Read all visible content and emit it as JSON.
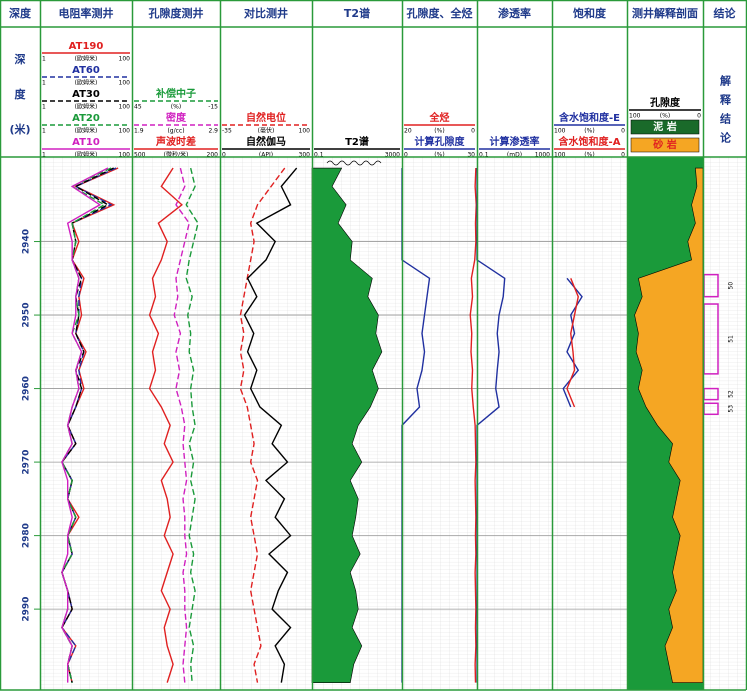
{
  "chart_data": {
    "type": "well-log",
    "depth_title": "深度",
    "depth_label": [
      "深",
      "度",
      "(米)"
    ],
    "ylim": [
      2928.5,
      3001
    ],
    "yticks": [
      2940,
      2950,
      2960,
      2970,
      2980,
      2990
    ],
    "depths": [
      2930,
      2932.5,
      2935,
      2937.5,
      2940,
      2942.5,
      2945,
      2947.5,
      2950,
      2952.5,
      2955,
      2957.5,
      2960,
      2962.5,
      2965,
      2967.5,
      2970,
      2972.5,
      2975,
      2977.5,
      2980,
      2982.5,
      2985,
      2987.5,
      2990,
      2992.5,
      2995,
      2997.5,
      3000
    ],
    "tracks": [
      {
        "type": "line",
        "title": "电阻率测井",
        "series": [
          {
            "name": "AT190",
            "color": "#e02020",
            "dash": false,
            "log": true,
            "xlim": [
              1,
              100
            ],
            "unit": "(欧姆米)",
            "values": [
              50,
              6,
              40,
              5,
              7,
              5,
              9,
              7,
              8,
              6,
              10,
              7,
              9,
              6,
              4,
              6,
              3,
              5,
              4,
              7,
              4,
              5,
              3,
              4,
              5,
              3,
              6,
              4,
              5
            ]
          },
          {
            "name": "AT60",
            "color": "#2030a0",
            "dash": true,
            "log": true,
            "xlim": [
              1,
              100
            ],
            "unit": "(欧姆米)",
            "values": [
              45,
              6,
              35,
              5,
              6,
              5,
              8,
              7,
              7,
              6,
              9,
              7,
              8,
              6,
              4,
              6,
              3,
              5,
              4,
              6,
              4,
              5,
              3,
              4,
              5,
              3,
              6,
              4,
              5
            ]
          },
          {
            "name": "AT30",
            "color": "#000000",
            "dash": true,
            "log": true,
            "xlim": [
              1,
              100
            ],
            "unit": "(欧姆米)",
            "values": [
              40,
              6,
              30,
              5,
              6,
              5,
              8,
              6,
              7,
              6,
              9,
              6,
              8,
              6,
              4,
              6,
              3,
              5,
              4,
              6,
              4,
              5,
              3,
              4,
              5,
              3,
              5,
              4,
              5
            ]
          },
          {
            "name": "AT20",
            "color": "#1a9a3a",
            "dash": true,
            "log": true,
            "xlim": [
              1,
              100
            ],
            "unit": "(欧姆米)",
            "values": [
              35,
              5,
              25,
              5,
              6,
              5,
              7,
              6,
              7,
              5,
              8,
              6,
              7,
              5,
              4,
              5,
              3,
              5,
              4,
              6,
              4,
              5,
              3,
              4,
              4,
              3,
              5,
              4,
              5
            ]
          },
          {
            "name": "AT10",
            "color": "#d020c0",
            "dash": false,
            "log": true,
            "xlim": [
              1,
              100
            ],
            "unit": "(欧姆米)",
            "values": [
              30,
              5,
              20,
              4,
              5,
              5,
              7,
              6,
              6,
              5,
              8,
              6,
              7,
              5,
              4,
              5,
              3,
              4,
              4,
              5,
              4,
              4,
              3,
              4,
              4,
              3,
              5,
              4,
              4
            ]
          }
        ]
      },
      {
        "type": "line",
        "title": "孔隙度测井",
        "series": [
          {
            "name": "补偿中子",
            "color": "#1a9a3a",
            "dash": true,
            "log": false,
            "xlim": [
              45,
              -15
            ],
            "unit": "(%)",
            "values": [
              5,
              2,
              8,
              0,
              3,
              6,
              8,
              4,
              7,
              5,
              6,
              3,
              5,
              4,
              2,
              6,
              3,
              5,
              2,
              4,
              6,
              3,
              5,
              2,
              4,
              6,
              3,
              5,
              4
            ]
          },
          {
            "name": "密度",
            "color": "#d020c0",
            "dash": true,
            "log": false,
            "xlim": [
              1.9,
              2.9
            ],
            "unit": "(g/cc)",
            "values": [
              2.45,
              2.5,
              2.4,
              2.55,
              2.5,
              2.45,
              2.4,
              2.42,
              2.38,
              2.45,
              2.4,
              2.44,
              2.4,
              2.46,
              2.5,
              2.48,
              2.5,
              2.52,
              2.48,
              2.5,
              2.5,
              2.52,
              2.48,
              2.5,
              2.5,
              2.52,
              2.5,
              2.48,
              2.5
            ]
          },
          {
            "name": "声波时差",
            "color": "#e02020",
            "dash": false,
            "log": false,
            "xlim": [
              500,
              200
            ],
            "unit": "(微秒/米)",
            "values": [
              360,
              400,
              330,
              410,
              380,
              400,
              430,
              420,
              440,
              410,
              430,
              420,
              440,
              400,
              370,
              390,
              360,
              400,
              380,
              370,
              390,
              360,
              380,
              400,
              370,
              390,
              380,
              360,
              380
            ]
          }
        ]
      },
      {
        "type": "line",
        "title": "对比测井",
        "series": [
          {
            "name": "自然电位",
            "color": "#e02020",
            "dash": true,
            "log": false,
            "xlim": [
              -35,
              100
            ],
            "unit": "(毫伏)",
            "values": [
              60,
              40,
              20,
              10,
              15,
              10,
              5,
              0,
              -5,
              0,
              -5,
              0,
              -5,
              5,
              10,
              15,
              10,
              20,
              15,
              10,
              15,
              20,
              15,
              10,
              15,
              20,
              25,
              15,
              20
            ]
          },
          {
            "name": "自然伽马",
            "color": "#000000",
            "dash": false,
            "log": false,
            "xlim": [
              0,
              300
            ],
            "unit": "(API)",
            "values": [
              250,
              200,
              230,
              120,
              180,
              150,
              90,
              120,
              80,
              110,
              90,
              120,
              100,
              130,
              200,
              170,
              220,
              150,
              210,
              180,
              230,
              160,
              220,
              190,
              170,
              230,
              180,
              210,
              200
            ]
          }
        ]
      },
      {
        "type": "area",
        "title": "T2谱",
        "series": [
          {
            "name": "T2谱",
            "color": "#1a9a3a",
            "fill": "left",
            "log": true,
            "xlim": [
              0.1,
              3000
            ],
            "unit": "",
            "values": [
              3,
              1,
              5,
              2,
              10,
              8,
              100,
              60,
              200,
              150,
              300,
              100,
              200,
              80,
              20,
              10,
              30,
              8,
              20,
              15,
              10,
              25,
              8,
              15,
              20,
              10,
              30,
              12,
              8
            ]
          }
        ]
      },
      {
        "type": "line",
        "title": "孔隙度、全烃",
        "series": [
          {
            "name": "全烃",
            "color": "#e02020",
            "dash": false,
            "log": false,
            "xlim": [
              20,
              0
            ],
            "unit": "(%)",
            "values": [
              0.3,
              0.5,
              0.2,
              0.4,
              0.3,
              0.6,
              1.5,
              1.2,
              1.8,
              1.4,
              1.6,
              1.2,
              1.4,
              1,
              0.5,
              0.4,
              0.3,
              0.5,
              0.4,
              0.3,
              0.4,
              0.3,
              0.5,
              0.4,
              0.3,
              0.4,
              0.3,
              0.5,
              0.4
            ]
          },
          {
            "name": "计算孔隙度",
            "color": "#2030a0",
            "dash": false,
            "log": false,
            "xlim": [
              0,
              30
            ],
            "unit": "(%)",
            "values": [
              0,
              0,
              0,
              0,
              0,
              0,
              11,
              10,
              9,
              8,
              9,
              8,
              6,
              7,
              0,
              0,
              0,
              0,
              0,
              0,
              0,
              0,
              0,
              0,
              0,
              0,
              0,
              0,
              0
            ]
          }
        ]
      },
      {
        "type": "line",
        "title": "渗透率",
        "series": [
          {
            "name": "计算渗透率",
            "color": "#2030a0",
            "dash": false,
            "log": true,
            "xlim": [
              0.1,
              1000
            ],
            "unit": "(mD)",
            "values": [
              0.1,
              0.1,
              0.1,
              0.1,
              0.1,
              0.1,
              3,
              2.5,
              1.5,
              1.2,
              1.5,
              1.2,
              1,
              1.5,
              0.1,
              0.1,
              0.1,
              0.1,
              0.1,
              0.1,
              0.1,
              0.1,
              0.1,
              0.1,
              0.1,
              0.1,
              0.1,
              0.1,
              0.1
            ]
          }
        ]
      },
      {
        "type": "line",
        "title": "饱和度",
        "series": [
          {
            "name": "含水饱和度-E",
            "color": "#2030a0",
            "dash": false,
            "log": false,
            "xlim": [
              100,
              0
            ],
            "unit": "(%)",
            "values": [
              null,
              null,
              null,
              null,
              null,
              null,
              80,
              60,
              75,
              70,
              80,
              65,
              85,
              75,
              null,
              null,
              null,
              null,
              null,
              null,
              null,
              null,
              null,
              null,
              null,
              null,
              null,
              null,
              null
            ]
          },
          {
            "name": "含水饱和度-A",
            "color": "#e02020",
            "dash": false,
            "log": false,
            "xlim": [
              100,
              0
            ],
            "unit": "(%)",
            "values": [
              null,
              null,
              null,
              null,
              null,
              null,
              75,
              65,
              70,
              75,
              72,
              70,
              80,
              70,
              null,
              null,
              null,
              null,
              null,
              null,
              null,
              null,
              null,
              null,
              null,
              null,
              null,
              null,
              null
            ]
          }
        ]
      },
      {
        "type": "area",
        "title": "测井解释剖面",
        "series": [
          {
            "name": "孔隙度",
            "color": "#f5a623",
            "fill": "right",
            "log": false,
            "xlim": [
              100,
              0
            ],
            "unit": "(%)",
            "values": [
              10,
              8,
              15,
              10,
              20,
              15,
              85,
              80,
              90,
              85,
              88,
              80,
              85,
              75,
              60,
              40,
              45,
              30,
              35,
              40,
              30,
              35,
              40,
              35,
              45,
              40,
              50,
              45,
              40
            ]
          }
        ],
        "background": "#1a9a3a",
        "legend": [
          {
            "name": "泥 岩",
            "color": "#1a6a2a",
            "text_color": "#ffffff"
          },
          {
            "name": "砂 岩",
            "color": "#f5a623",
            "text_color": "#e02020"
          }
        ]
      }
    ],
    "conclusion": {
      "column_title": "结论",
      "title": "解释结论",
      "color": "#d020c0",
      "layers": [
        {
          "label": 50,
          "top": 2944.5,
          "bottom": 2947.5
        },
        {
          "label": 51,
          "top": 2948.5,
          "bottom": 2958
        },
        {
          "label": 52,
          "top": 2960,
          "bottom": 2961.5
        },
        {
          "label": 53,
          "top": 2962,
          "bottom": 2963.5
        }
      ]
    }
  }
}
